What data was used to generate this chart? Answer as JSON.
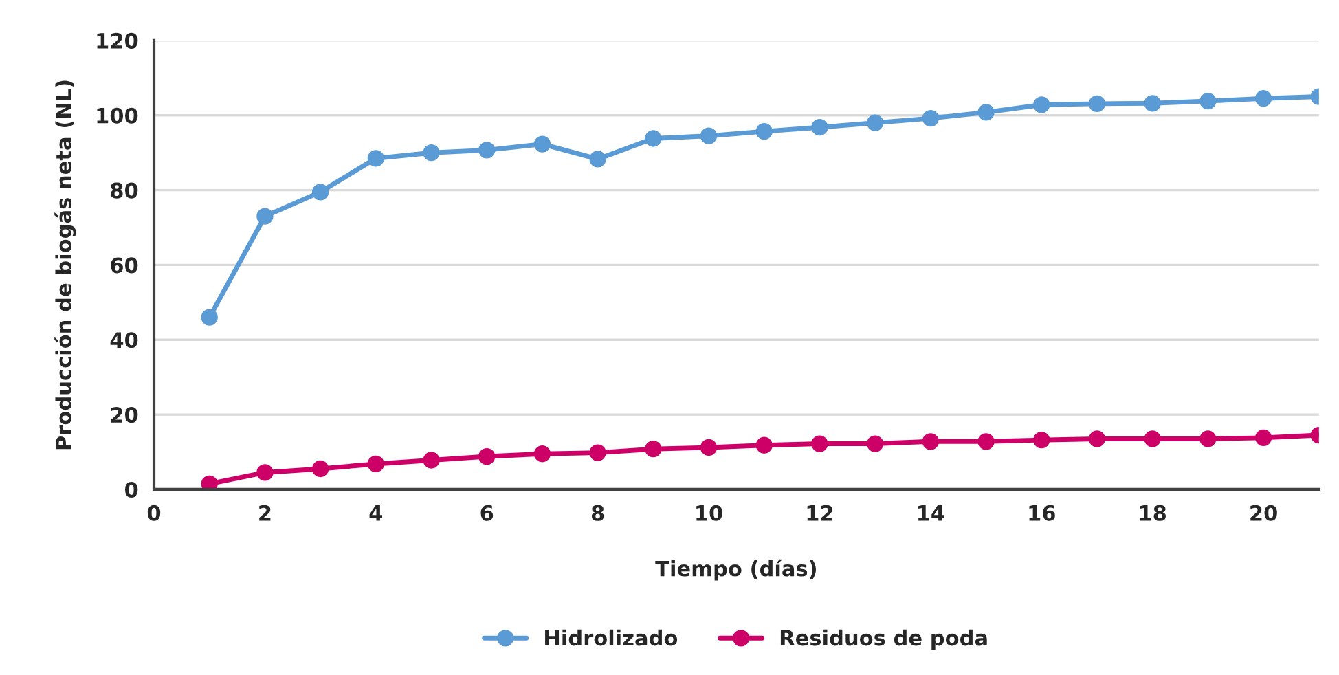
{
  "chart_data": {
    "type": "line",
    "xlabel": "Tiempo (días)",
    "ylabel": "Producción de biogás neta (NL)",
    "x": [
      1,
      2,
      3,
      4,
      5,
      6,
      7,
      8,
      9,
      10,
      11,
      12,
      13,
      14,
      15,
      16,
      17,
      18,
      19,
      20,
      21
    ],
    "series": [
      {
        "name": "Hidrolizado",
        "color": "#5b9bd5",
        "values": [
          46,
          73,
          79.5,
          88.5,
          90,
          90.7,
          92.3,
          88.3,
          93.8,
          94.5,
          95.7,
          96.8,
          98,
          99.2,
          100.8,
          102.8,
          103.1,
          103.2,
          103.8,
          104.5,
          105
        ]
      },
      {
        "name": "Residuos de poda",
        "color": "#cc0066",
        "values": [
          1.5,
          4.5,
          5.5,
          6.8,
          7.8,
          8.8,
          9.5,
          9.8,
          10.8,
          11.2,
          11.8,
          12.2,
          12.2,
          12.8,
          12.8,
          13.2,
          13.5,
          13.5,
          13.5,
          13.8,
          14.5
        ]
      }
    ],
    "xlim": [
      0,
      21
    ],
    "xticks": [
      0,
      2,
      4,
      6,
      8,
      10,
      12,
      14,
      16,
      18,
      20
    ],
    "ylim": [
      0,
      120
    ],
    "yticks": [
      0,
      20,
      40,
      60,
      80,
      100,
      120
    ],
    "grid": "y",
    "legend": "bottom",
    "marker": "circle",
    "line_style": "solid"
  }
}
